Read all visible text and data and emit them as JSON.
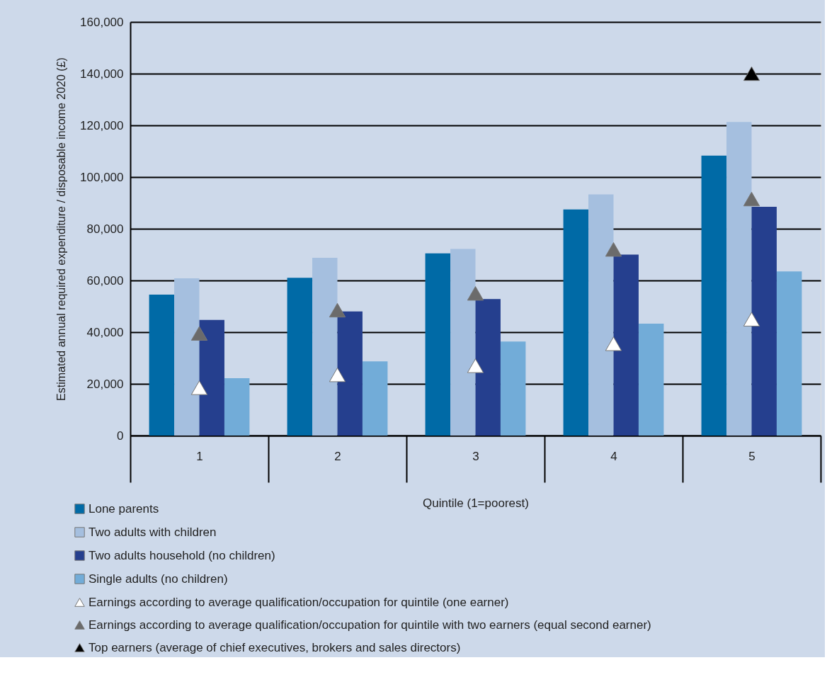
{
  "chart_data": {
    "type": "bar",
    "xlabel": "Quintile (1=poorest)",
    "ylabel": "Estimated annual required expenditure / disposable income 2020 (£)",
    "categories": [
      "1",
      "2",
      "3",
      "4",
      "5"
    ],
    "series": [
      {
        "name": "Lone parents",
        "color": "#006aa6",
        "values": [
          54500,
          61000,
          70500,
          87500,
          108300
        ]
      },
      {
        "name": "Two adults with children",
        "color": "#a5bfdf",
        "values": [
          60800,
          68800,
          72200,
          93300,
          121300
        ]
      },
      {
        "name": "Two adults household (no children)",
        "color": "#253f8e",
        "values": [
          44700,
          48000,
          52800,
          70000,
          88500
        ]
      },
      {
        "name": "Single adults (no children)",
        "color": "#72acd8",
        "values": [
          22200,
          28700,
          36400,
          43300,
          63500
        ]
      },
      {
        "name": "Earnings according to average qualification/occupation for quintile (one earner)",
        "type": "scatter",
        "marker": "triangle",
        "color": "#ffffff",
        "values": [
          18500,
          23500,
          27000,
          35500,
          45000
        ]
      },
      {
        "name": "Earnings according to average qualification/occupation for quintile with two earners (equal second earner)",
        "type": "scatter",
        "marker": "triangle",
        "color": "#6b6b6b",
        "values": [
          39500,
          48500,
          55000,
          72000,
          91500
        ]
      },
      {
        "name": "Top earners (average of chief executives, brokers and sales directors)",
        "type": "scatter",
        "marker": "triangle",
        "color": "#000000",
        "values": [
          null,
          null,
          null,
          null,
          140000
        ]
      }
    ],
    "ylim": [
      0,
      160000
    ],
    "yticks": [
      {
        "value": 0,
        "label": "0"
      },
      {
        "value": 20000,
        "label": "20,000"
      },
      {
        "value": 40000,
        "label": "40,000"
      },
      {
        "value": 60000,
        "label": "60,000"
      },
      {
        "value": 80000,
        "label": "80,000"
      },
      {
        "value": 100000,
        "label": "100,000"
      },
      {
        "value": 120000,
        "label": "120,000"
      },
      {
        "value": 140000,
        "label": "140,000"
      },
      {
        "value": 160000,
        "label": "160,000"
      }
    ],
    "grid": "y",
    "legend": "bottom left"
  }
}
